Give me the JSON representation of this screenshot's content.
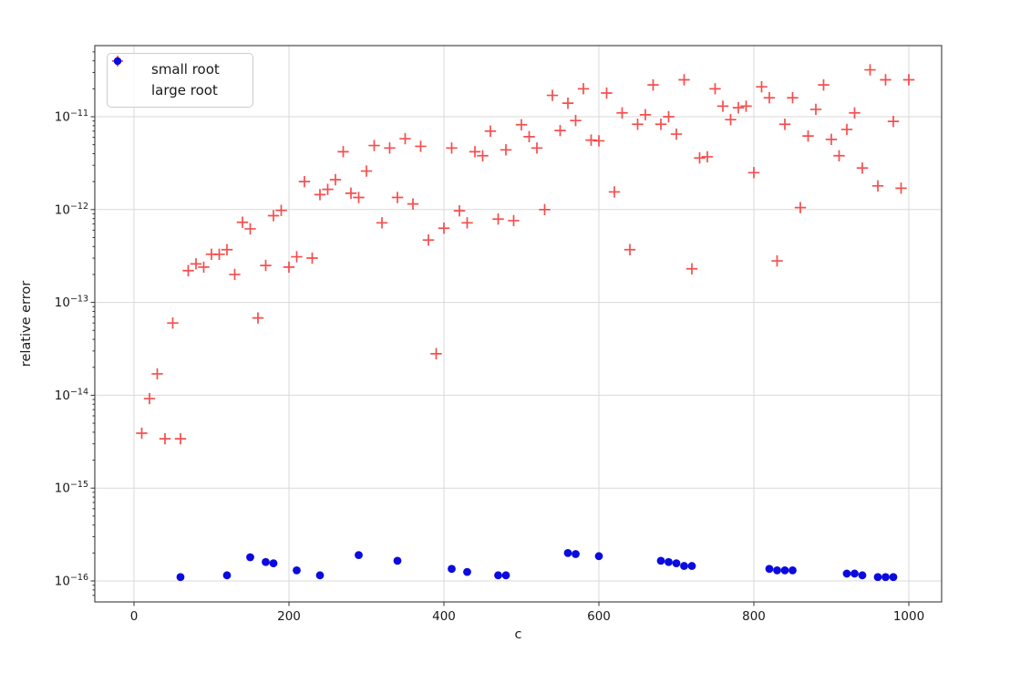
{
  "style": {
    "background": "#ffffff",
    "grid_color": "#d9d9d9",
    "spine_color": "#4a4a4a",
    "tick_color": "#333333",
    "text_color": "#1a1a1a"
  },
  "chart_data": {
    "type": "scatter",
    "title": "",
    "xlabel": "c",
    "ylabel": "relative error",
    "y_scale": "log",
    "grid": true,
    "xlim": [
      -50,
      1050
    ],
    "ylim": [
      6e-17,
      6e-11
    ],
    "x_ticks": [
      0,
      200,
      400,
      600,
      800,
      1000
    ],
    "y_tick_exponents": [
      -11,
      -12,
      -13,
      -14,
      -15,
      -16
    ],
    "legend_position": "upper left",
    "series": [
      {
        "name": "small root",
        "marker": "plus",
        "color": "#f23030",
        "points": [
          [
            10,
            3.9e-15
          ],
          [
            20,
            9.2e-15
          ],
          [
            30,
            1.7e-14
          ],
          [
            40,
            3.4e-15
          ],
          [
            50,
            6e-14
          ],
          [
            60,
            3.4e-15
          ],
          [
            70,
            2.2e-13
          ],
          [
            80,
            2.6e-13
          ],
          [
            90,
            2.4e-13
          ],
          [
            100,
            3.3e-13
          ],
          [
            110,
            3.3e-13
          ],
          [
            120,
            3.7e-13
          ],
          [
            130,
            2e-13
          ],
          [
            140,
            7.3e-13
          ],
          [
            150,
            6.2e-13
          ],
          [
            160,
            6.8e-14
          ],
          [
            170,
            2.5e-13
          ],
          [
            180,
            8.6e-13
          ],
          [
            190,
            9.8e-13
          ],
          [
            200,
            2.4e-13
          ],
          [
            210,
            3.1e-13
          ],
          [
            220,
            2e-12
          ],
          [
            230,
            3e-13
          ],
          [
            240,
            1.45e-12
          ],
          [
            250,
            1.65e-12
          ],
          [
            260,
            2.1e-12
          ],
          [
            270,
            4.2e-12
          ],
          [
            280,
            1.5e-12
          ],
          [
            290,
            1.35e-12
          ],
          [
            300,
            2.6e-12
          ],
          [
            310,
            4.9e-12
          ],
          [
            320,
            7.2e-13
          ],
          [
            330,
            4.6e-12
          ],
          [
            340,
            1.35e-12
          ],
          [
            350,
            5.8e-12
          ],
          [
            360,
            1.15e-12
          ],
          [
            370,
            4.8e-12
          ],
          [
            380,
            4.7e-13
          ],
          [
            390,
            2.8e-14
          ],
          [
            400,
            6.3e-13
          ],
          [
            410,
            4.6e-12
          ],
          [
            420,
            9.7e-13
          ],
          [
            430,
            7.2e-13
          ],
          [
            440,
            4.2e-12
          ],
          [
            450,
            3.8e-12
          ],
          [
            460,
            7e-12
          ],
          [
            470,
            7.9e-13
          ],
          [
            480,
            4.4e-12
          ],
          [
            490,
            7.6e-13
          ],
          [
            500,
            8.2e-12
          ],
          [
            510,
            6.1e-12
          ],
          [
            520,
            4.6e-12
          ],
          [
            530,
            1e-12
          ],
          [
            540,
            1.7e-11
          ],
          [
            550,
            7.1e-12
          ],
          [
            560,
            1.4e-11
          ],
          [
            570,
            9.1e-12
          ],
          [
            580,
            2e-11
          ],
          [
            590,
            5.6e-12
          ],
          [
            600,
            5.5e-12
          ],
          [
            610,
            1.8e-11
          ],
          [
            620,
            1.55e-12
          ],
          [
            630,
            1.1e-11
          ],
          [
            640,
            3.7e-13
          ],
          [
            650,
            8.3e-12
          ],
          [
            660,
            1.05e-11
          ],
          [
            670,
            2.2e-11
          ],
          [
            680,
            8.3e-12
          ],
          [
            690,
            1e-11
          ],
          [
            700,
            6.5e-12
          ],
          [
            710,
            2.5e-11
          ],
          [
            720,
            2.3e-13
          ],
          [
            730,
            3.6e-12
          ],
          [
            740,
            3.7e-12
          ],
          [
            750,
            2e-11
          ],
          [
            760,
            1.3e-11
          ],
          [
            770,
            9.3e-12
          ],
          [
            780,
            1.25e-11
          ],
          [
            790,
            1.3e-11
          ],
          [
            800,
            2.5e-12
          ],
          [
            810,
            2.1e-11
          ],
          [
            820,
            1.6e-11
          ],
          [
            830,
            2.8e-13
          ],
          [
            840,
            8.3e-12
          ],
          [
            850,
            1.6e-11
          ],
          [
            860,
            1.05e-12
          ],
          [
            870,
            6.2e-12
          ],
          [
            880,
            1.2e-11
          ],
          [
            890,
            2.2e-11
          ],
          [
            900,
            5.7e-12
          ],
          [
            910,
            3.8e-12
          ],
          [
            920,
            7.3e-12
          ],
          [
            930,
            1.1e-11
          ],
          [
            940,
            2.8e-12
          ],
          [
            950,
            3.2e-11
          ],
          [
            960,
            1.8e-12
          ],
          [
            970,
            2.5e-11
          ],
          [
            980,
            8.9e-12
          ],
          [
            990,
            1.7e-12
          ],
          [
            1000,
            2.5e-11
          ]
        ]
      },
      {
        "name": "large root",
        "marker": "dot",
        "color": "#0b0bdd",
        "points": [
          [
            60,
            1.1e-16
          ],
          [
            120,
            1.15e-16
          ],
          [
            150,
            1.8e-16
          ],
          [
            170,
            1.6e-16
          ],
          [
            180,
            1.55e-16
          ],
          [
            210,
            1.3e-16
          ],
          [
            240,
            1.15e-16
          ],
          [
            290,
            1.9e-16
          ],
          [
            340,
            1.65e-16
          ],
          [
            410,
            1.35e-16
          ],
          [
            430,
            1.25e-16
          ],
          [
            470,
            1.15e-16
          ],
          [
            480,
            1.15e-16
          ],
          [
            560,
            2e-16
          ],
          [
            570,
            1.95e-16
          ],
          [
            600,
            1.85e-16
          ],
          [
            680,
            1.65e-16
          ],
          [
            690,
            1.6e-16
          ],
          [
            700,
            1.55e-16
          ],
          [
            710,
            1.45e-16
          ],
          [
            720,
            1.45e-16
          ],
          [
            820,
            1.35e-16
          ],
          [
            830,
            1.3e-16
          ],
          [
            840,
            1.3e-16
          ],
          [
            850,
            1.3e-16
          ],
          [
            920,
            1.2e-16
          ],
          [
            930,
            1.2e-16
          ],
          [
            940,
            1.15e-16
          ],
          [
            960,
            1.1e-16
          ],
          [
            970,
            1.1e-16
          ],
          [
            980,
            1.1e-16
          ]
        ]
      }
    ]
  }
}
